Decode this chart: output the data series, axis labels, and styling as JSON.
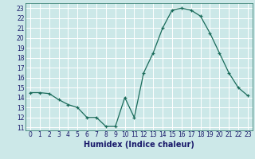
{
  "x": [
    0,
    1,
    2,
    3,
    4,
    5,
    6,
    7,
    8,
    9,
    10,
    11,
    12,
    13,
    14,
    15,
    16,
    17,
    18,
    19,
    20,
    21,
    22,
    23
  ],
  "y": [
    14.5,
    14.5,
    14.4,
    13.8,
    13.3,
    13.0,
    12.0,
    12.0,
    11.1,
    11.1,
    14.0,
    12.0,
    16.5,
    18.5,
    21.0,
    22.8,
    23.0,
    22.8,
    22.2,
    20.5,
    18.5,
    16.5,
    15.0,
    14.2
  ],
  "xlabel": "Humidex (Indice chaleur)",
  "ylim_min": 10.7,
  "ylim_max": 23.5,
  "xlim_min": -0.5,
  "xlim_max": 23.5,
  "yticks": [
    11,
    12,
    13,
    14,
    15,
    16,
    17,
    18,
    19,
    20,
    21,
    22,
    23
  ],
  "xticks": [
    0,
    1,
    2,
    3,
    4,
    5,
    6,
    7,
    8,
    9,
    10,
    11,
    12,
    13,
    14,
    15,
    16,
    17,
    18,
    19,
    20,
    21,
    22,
    23
  ],
  "line_color": "#1a6b5a",
  "marker_color": "#1a6b5a",
  "bg_color": "#cce8e8",
  "grid_color": "#ffffff",
  "label_color": "#1a1a6b",
  "xlabel_fontsize": 7,
  "tick_fontsize": 5.5
}
